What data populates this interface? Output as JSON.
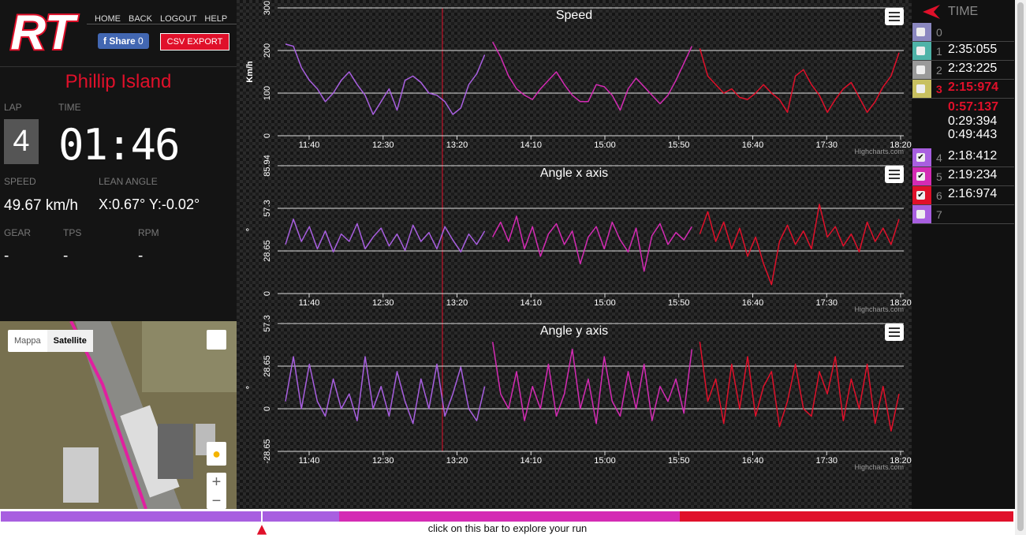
{
  "header": {
    "logo": "RT",
    "nav": [
      "HOME",
      "BACK",
      "LOGOUT",
      "HELP"
    ],
    "share": "Share",
    "share_count": 0,
    "csv": "CSV EXPORT"
  },
  "track": "Phillip Island",
  "telemetry": {
    "lap_label": "LAP",
    "lap": 4,
    "time_label": "TIME",
    "time": "01:46",
    "speed_label": "SPEED",
    "speed": "49.67 km/h",
    "lean_label": "LEAN ANGLE",
    "lean": "X:0.67° Y:-0.02°",
    "gear_label": "GEAR",
    "gear": "-",
    "tps_label": "TPS",
    "tps": "-",
    "rpm_label": "RPM",
    "rpm": "-"
  },
  "map": {
    "buttons": [
      "Mappa",
      "Satellite"
    ]
  },
  "chart_data": [
    {
      "type": "line",
      "title": "Speed",
      "y_label": "Km/h",
      "ylim": [
        0,
        300
      ],
      "yticks": [
        0,
        100,
        200,
        300
      ],
      "xticks": [
        "11:40",
        "12:30",
        "13:20",
        "14:10",
        "15:00",
        "15:50",
        "16:40",
        "17:30",
        "18:20"
      ],
      "credit": "Highcharts.com",
      "series": [
        {
          "color": "#a85fe0",
          "values": [
            215,
            210,
            160,
            130,
            110,
            80,
            100,
            130,
            150,
            120,
            95,
            50,
            80,
            110,
            60,
            130,
            140,
            125,
            100,
            95,
            80,
            50,
            65,
            120,
            145,
            190
          ]
        },
        {
          "color": "#d42bb4",
          "values": [
            220,
            185,
            140,
            110,
            95,
            85,
            110,
            130,
            150,
            120,
            95,
            80,
            80,
            120,
            115,
            95,
            60,
            110,
            135,
            115,
            95,
            75,
            95,
            130,
            170,
            210
          ]
        },
        {
          "color": "#e0102a",
          "values": [
            205,
            140,
            120,
            100,
            110,
            90,
            85,
            100,
            120,
            100,
            85,
            55,
            140,
            155,
            120,
            95,
            55,
            85,
            110,
            125,
            90,
            55,
            80,
            115,
            140,
            195
          ]
        }
      ]
    },
    {
      "type": "line",
      "title": "Angle x axis",
      "y_label": "°",
      "ylim": [
        0,
        85.94
      ],
      "yticks": [
        0,
        28.65,
        57.3,
        85.94
      ],
      "xticks": [
        "11:40",
        "12:30",
        "13:20",
        "14:10",
        "15:00",
        "15:50",
        "16:40",
        "17:30",
        "18:20"
      ],
      "credit": "Highcharts.com",
      "series": [
        {
          "color": "#a85fe0",
          "values": [
            33,
            50,
            35,
            45,
            30,
            42,
            28,
            40,
            35,
            47,
            30,
            38,
            44,
            32,
            40,
            29,
            46,
            35,
            41,
            30,
            45,
            36,
            28,
            40,
            33,
            42
          ]
        },
        {
          "color": "#d42bb4",
          "values": [
            38,
            48,
            35,
            52,
            30,
            45,
            25,
            40,
            47,
            33,
            42,
            20,
            38,
            45,
            30,
            48,
            36,
            28,
            44,
            15,
            39,
            47,
            33,
            41,
            36,
            45
          ]
        },
        {
          "color": "#e0102a",
          "values": [
            40,
            55,
            35,
            48,
            30,
            44,
            25,
            38,
            20,
            6,
            35,
            46,
            33,
            42,
            30,
            60,
            38,
            45,
            32,
            40,
            28,
            48,
            35,
            44,
            33,
            50
          ]
        }
      ]
    },
    {
      "type": "line",
      "title": "Angle y axis",
      "y_label": "°",
      "ylim": [
        -28.65,
        57.3
      ],
      "yticks": [
        -28.65,
        0,
        28.65,
        57.3
      ],
      "xticks": [
        "11:40",
        "12:30",
        "13:20",
        "14:10",
        "15:00",
        "15:50",
        "16:40",
        "17:30",
        "18:20"
      ],
      "credit": "Highcharts.com",
      "series": [
        {
          "color": "#a85fe0",
          "values": [
            5,
            35,
            0,
            30,
            5,
            -5,
            20,
            0,
            10,
            -8,
            35,
            0,
            15,
            -5,
            25,
            5,
            -10,
            20,
            0,
            30,
            -5,
            10,
            28,
            0,
            -8,
            15
          ]
        },
        {
          "color": "#d42bb4",
          "values": [
            45,
            10,
            0,
            25,
            -8,
            15,
            0,
            30,
            -5,
            10,
            40,
            0,
            20,
            -10,
            35,
            5,
            -5,
            25,
            0,
            30,
            -8,
            15,
            5,
            20,
            -3,
            40
          ]
        },
        {
          "color": "#e0102a",
          "values": [
            45,
            5,
            20,
            -10,
            30,
            0,
            35,
            -5,
            15,
            25,
            -12,
            5,
            30,
            0,
            -5,
            25,
            10,
            35,
            -8,
            20,
            0,
            30,
            -10,
            15,
            -15,
            10
          ]
        }
      ]
    }
  ],
  "laps": {
    "header": "TIME",
    "rows": [
      {
        "lap": 0,
        "color": "#8b88c0",
        "checked": false
      },
      {
        "lap": 1,
        "time": "2:35:055",
        "color": "#4fb3a8",
        "checked": false
      },
      {
        "lap": 2,
        "time": "2:23:225",
        "color": "#9a9a9a",
        "checked": false
      },
      {
        "lap": 3,
        "time": "2:15:974",
        "color": "#c8c060",
        "checked": false,
        "best": true,
        "sectors": [
          "0:57:137",
          "0:29:394",
          "0:49:443"
        ]
      },
      {
        "lap": 4,
        "time": "2:18:412",
        "color": "#a85fe0",
        "checked": true
      },
      {
        "lap": 5,
        "time": "2:19:234",
        "color": "#d42bb4",
        "checked": true
      },
      {
        "lap": 6,
        "time": "2:16:974",
        "color": "#e0102a",
        "checked": true
      },
      {
        "lap": 7,
        "color": "#a85fe0",
        "checked": false
      }
    ]
  },
  "footer": "click on this bar to explore your run"
}
